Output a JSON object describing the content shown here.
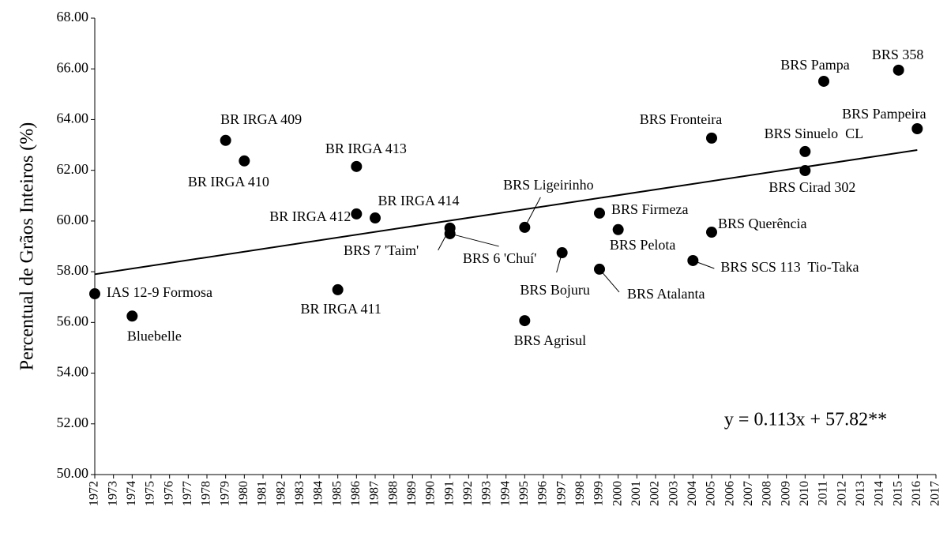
{
  "chart_data": {
    "type": "scatter",
    "ylabel": "Percentual de Grãos Inteiros (%)",
    "annotation": "y = 0.113x + 57.82**",
    "color": "#000000",
    "x": [
      1972,
      1974,
      1979,
      1980,
      1985,
      1986,
      1986,
      1987,
      1991,
      1991,
      1995,
      1995,
      1997,
      1999,
      1999,
      2000,
      2004,
      2005,
      2005,
      2010,
      2010,
      2011,
      2015,
      2016
    ],
    "values": [
      57.13,
      56.25,
      63.18,
      62.37,
      57.29,
      60.28,
      62.15,
      60.12,
      59.72,
      59.5,
      59.75,
      56.07,
      58.75,
      60.31,
      58.1,
      59.66,
      58.44,
      59.56,
      63.27,
      62.74,
      61.99,
      65.51,
      65.95,
      63.64
    ],
    "point_labels": [
      "IAS 12-9 Formosa",
      "Bluebelle",
      "BR IRGA 409",
      "BR IRGA 410",
      "BR IRGA 411",
      "BR IRGA 412",
      "BR IRGA 413",
      "BR IRGA 414",
      "BRS 7 'Taim'",
      "BRS 6 'Chuí'",
      "BRS Ligeirinho",
      "BRS Agrisul",
      "BRS Bojuru",
      "BRS Firmeza",
      "BRS Atalanta",
      "BRS Pelota",
      "BRS SCS 113  Tio-Taka",
      "BRS Querência",
      "BRS Fronteira",
      "BRS Sinuelo  CL",
      "BRS Cirad 302",
      "BRS Pampa",
      "BRS 358",
      "BRS Pampeira"
    ],
    "trendline": {
      "x": [
        1972,
        2016
      ],
      "y": [
        57.9,
        62.8
      ]
    },
    "xlim": [
      1972,
      2017
    ],
    "xticks": [
      1972,
      1973,
      1974,
      1975,
      1976,
      1977,
      1978,
      1979,
      1980,
      1981,
      1982,
      1983,
      1984,
      1985,
      1986,
      1987,
      1988,
      1989,
      1990,
      1991,
      1992,
      1993,
      1994,
      1995,
      1996,
      1997,
      1998,
      1999,
      2000,
      2001,
      2002,
      2003,
      2004,
      2005,
      2006,
      2007,
      2008,
      2009,
      2010,
      2011,
      2012,
      2013,
      2014,
      2015,
      2016,
      2017
    ],
    "ylim": [
      50,
      68
    ],
    "yticks": [
      {
        "value": 50,
        "label": "50.00"
      },
      {
        "value": 52,
        "label": "52.00"
      },
      {
        "value": 54,
        "label": "54.00"
      },
      {
        "value": 56,
        "label": "56.00"
      },
      {
        "value": 58,
        "label": "58.00"
      },
      {
        "value": 60,
        "label": "60.00"
      },
      {
        "value": 62,
        "label": "62.00"
      },
      {
        "value": 64,
        "label": "64.00"
      },
      {
        "value": 66,
        "label": "66.00"
      },
      {
        "value": 68,
        "label": "68.00"
      }
    ],
    "grid": false
  }
}
